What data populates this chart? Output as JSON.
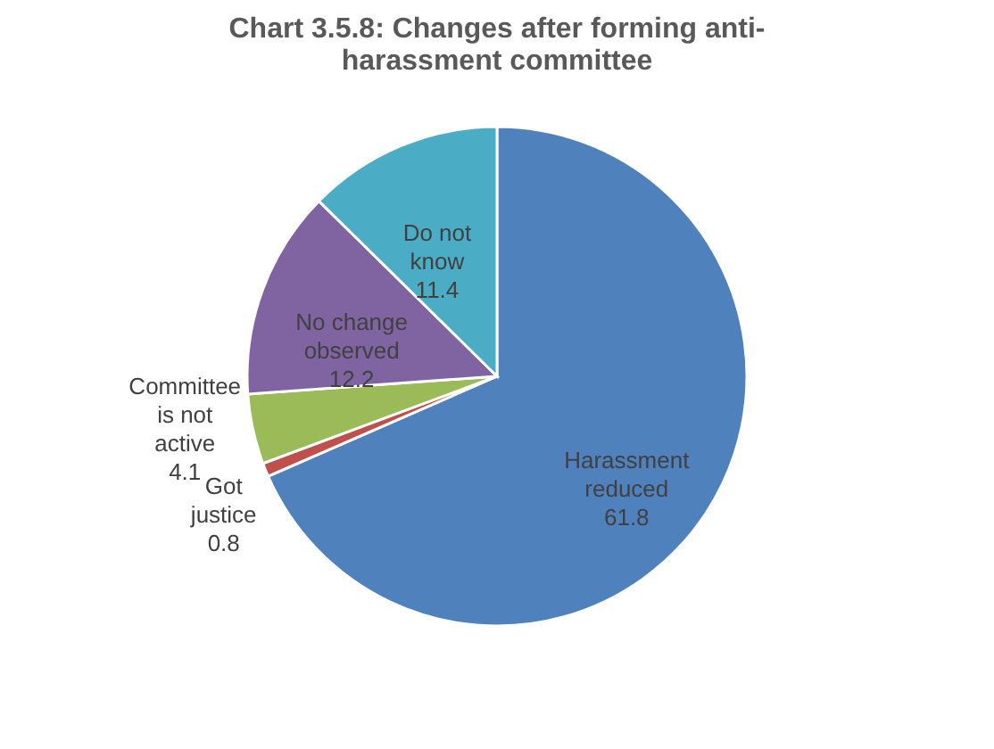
{
  "chart_data": {
    "type": "pie",
    "title": "Chart 3.5.8: Changes after forming anti-harassment committee",
    "categories": [
      "Harassment reduced",
      "Got justice",
      "Committee is not active",
      "No change observed",
      "Do not know"
    ],
    "values": [
      61.8,
      0.8,
      4.1,
      12.2,
      11.4
    ],
    "colors": [
      "#4f81bd",
      "#c0504d",
      "#9bbb59",
      "#8064a2",
      "#4bacc6"
    ],
    "data_labels": true,
    "legend": false
  }
}
